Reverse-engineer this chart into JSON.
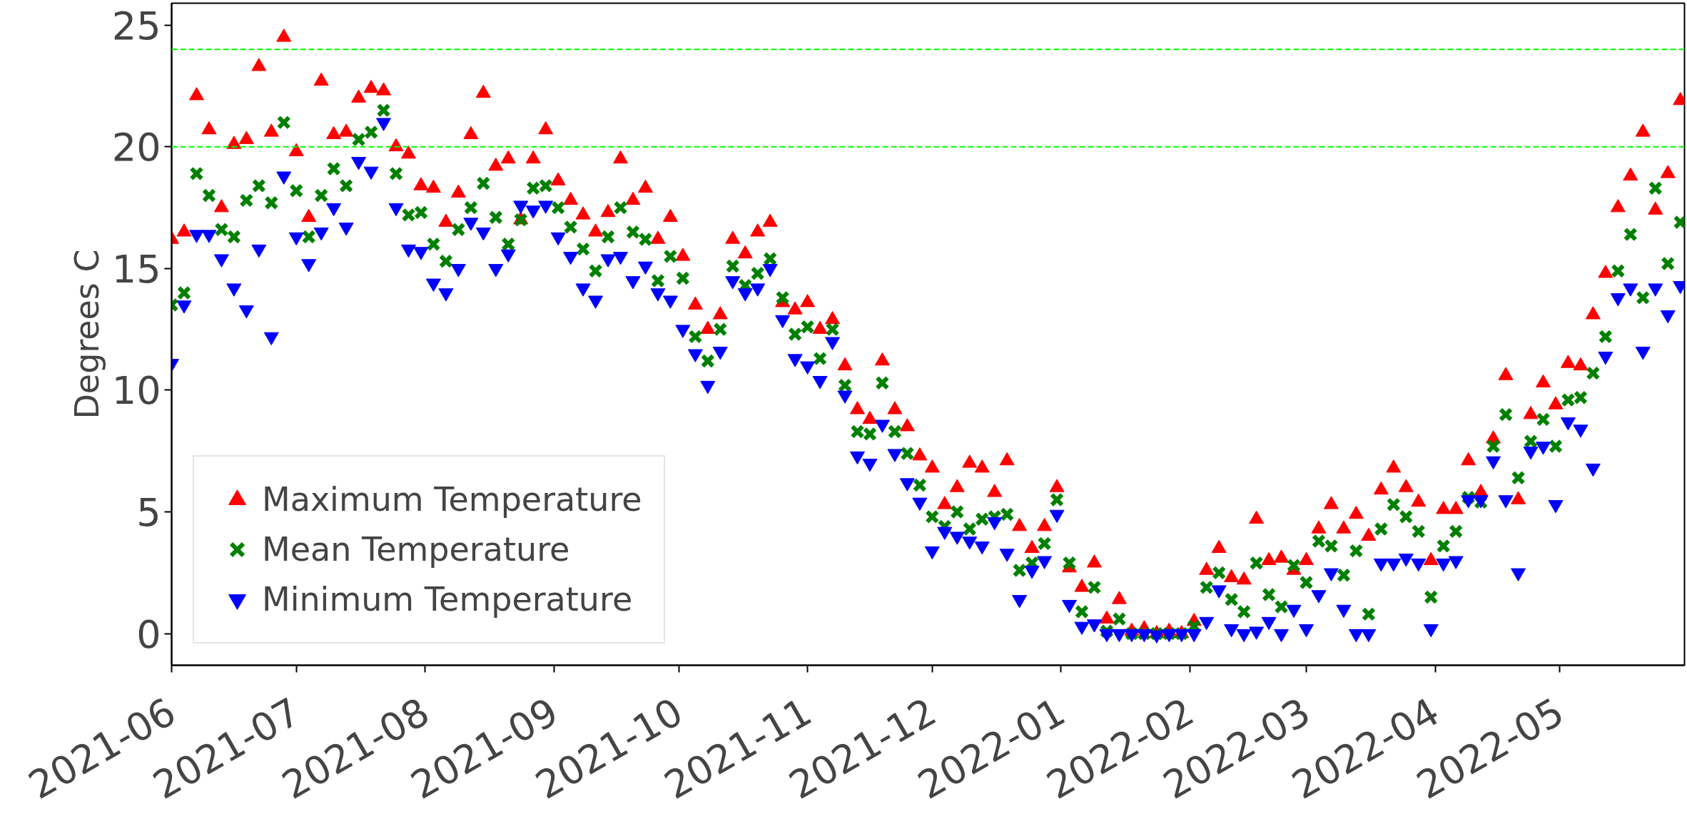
{
  "chart_data": {
    "type": "scatter",
    "ylabel": "Degrees C",
    "x": [
      "2021-06-01",
      "2021-06-04",
      "2021-06-07",
      "2021-06-10",
      "2021-06-13",
      "2021-06-16",
      "2021-06-19",
      "2021-06-22",
      "2021-06-25",
      "2021-06-28",
      "2021-07-01",
      "2021-07-04",
      "2021-07-07",
      "2021-07-10",
      "2021-07-13",
      "2021-07-16",
      "2021-07-19",
      "2021-07-22",
      "2021-07-25",
      "2021-07-28",
      "2021-07-31",
      "2021-08-03",
      "2021-08-06",
      "2021-08-09",
      "2021-08-12",
      "2021-08-15",
      "2021-08-18",
      "2021-08-21",
      "2021-08-24",
      "2021-08-27",
      "2021-08-30",
      "2021-09-02",
      "2021-09-05",
      "2021-09-08",
      "2021-09-11",
      "2021-09-14",
      "2021-09-17",
      "2021-09-20",
      "2021-09-23",
      "2021-09-26",
      "2021-09-29",
      "2021-10-02",
      "2021-10-05",
      "2021-10-08",
      "2021-10-11",
      "2021-10-14",
      "2021-10-17",
      "2021-10-20",
      "2021-10-23",
      "2021-10-26",
      "2021-10-29",
      "2021-11-01",
      "2021-11-04",
      "2021-11-07",
      "2021-11-10",
      "2021-11-13",
      "2021-11-16",
      "2021-11-19",
      "2021-11-22",
      "2021-11-25",
      "2021-11-28",
      "2021-12-01",
      "2021-12-04",
      "2021-12-07",
      "2021-12-10",
      "2021-12-13",
      "2021-12-16",
      "2021-12-19",
      "2021-12-22",
      "2021-12-25",
      "2021-12-28",
      "2021-12-31",
      "2022-01-03",
      "2022-01-06",
      "2022-01-09",
      "2022-01-12",
      "2022-01-15",
      "2022-01-18",
      "2022-01-21",
      "2022-01-24",
      "2022-01-27",
      "2022-01-30",
      "2022-02-02",
      "2022-02-05",
      "2022-02-08",
      "2022-02-11",
      "2022-02-14",
      "2022-02-17",
      "2022-02-20",
      "2022-02-23",
      "2022-02-26",
      "2022-03-01",
      "2022-03-04",
      "2022-03-07",
      "2022-03-10",
      "2022-03-13",
      "2022-03-16",
      "2022-03-19",
      "2022-03-22",
      "2022-03-25",
      "2022-03-28",
      "2022-03-31",
      "2022-04-03",
      "2022-04-06",
      "2022-04-09",
      "2022-04-12",
      "2022-04-15",
      "2022-04-18",
      "2022-04-21",
      "2022-04-24",
      "2022-04-27",
      "2022-04-30",
      "2022-05-03",
      "2022-05-06",
      "2022-05-09",
      "2022-05-12",
      "2022-05-15",
      "2022-05-18",
      "2022-05-21",
      "2022-05-24",
      "2022-05-27",
      "2022-05-30"
    ],
    "series": [
      {
        "name": "Maximum Temperature",
        "color": "#ff0000",
        "marker": "triangle",
        "values": [
          16.2,
          16.5,
          22.1,
          20.7,
          17.5,
          20.1,
          20.3,
          23.3,
          20.6,
          24.5,
          19.8,
          17.1,
          22.7,
          20.5,
          20.6,
          22.0,
          22.4,
          22.3,
          20.0,
          19.7,
          18.4,
          18.3,
          16.9,
          18.1,
          20.5,
          22.2,
          19.2,
          19.5,
          17.0,
          19.5,
          20.7,
          18.6,
          17.8,
          17.2,
          16.5,
          17.3,
          19.5,
          17.8,
          18.3,
          16.2,
          17.1,
          15.5,
          13.5,
          12.5,
          13.1,
          16.2,
          15.6,
          16.5,
          16.9,
          13.6,
          13.3,
          13.6,
          12.5,
          12.9,
          11.0,
          9.2,
          8.8,
          11.2,
          9.2,
          8.5,
          7.3,
          6.8,
          5.3,
          6.0,
          7.0,
          6.8,
          5.8,
          7.1,
          4.4,
          3.5,
          4.4,
          6.0,
          2.7,
          1.9,
          2.9,
          0.6,
          1.4,
          0.1,
          0.2,
          0.0,
          0.1,
          0.0,
          0.5,
          2.6,
          3.5,
          2.3,
          2.2,
          4.7,
          3.0,
          3.1,
          2.6,
          3.0,
          4.3,
          5.3,
          4.3,
          4.9,
          4.0,
          5.9,
          6.8,
          6.0,
          5.4,
          3.0,
          5.1,
          5.1,
          7.1,
          5.8,
          8.0,
          10.6,
          5.5,
          9.0,
          10.3,
          9.4,
          11.1,
          11.0,
          13.1,
          14.8,
          17.5,
          18.8,
          20.6,
          17.4,
          18.9,
          21.9
        ]
      },
      {
        "name": "Mean Temperature",
        "color": "#008000",
        "marker": "cross",
        "values": [
          13.5,
          14.0,
          18.9,
          18.0,
          16.6,
          16.3,
          17.8,
          18.4,
          17.7,
          21.0,
          18.2,
          16.3,
          18.0,
          19.1,
          18.4,
          20.3,
          20.6,
          21.5,
          18.9,
          17.2,
          17.3,
          16.0,
          15.3,
          16.6,
          17.5,
          18.5,
          17.1,
          16.0,
          17.0,
          18.3,
          18.4,
          17.5,
          16.7,
          15.8,
          14.9,
          16.3,
          17.5,
          16.5,
          16.2,
          14.5,
          15.5,
          14.6,
          12.2,
          11.2,
          12.5,
          15.1,
          14.3,
          14.8,
          15.4,
          13.8,
          12.3,
          12.6,
          11.3,
          12.5,
          10.2,
          8.3,
          8.2,
          10.3,
          8.3,
          7.4,
          6.1,
          4.8,
          4.4,
          5.0,
          4.3,
          4.7,
          4.8,
          4.9,
          2.6,
          2.9,
          3.7,
          5.5,
          2.9,
          0.9,
          1.9,
          0.1,
          0.6,
          0.0,
          0.0,
          0.0,
          0.0,
          0.0,
          0.3,
          1.9,
          2.5,
          1.4,
          0.9,
          2.9,
          1.6,
          1.1,
          2.8,
          2.1,
          3.8,
          3.6,
          2.4,
          3.4,
          0.8,
          4.3,
          5.3,
          4.8,
          4.2,
          1.5,
          3.6,
          4.2,
          5.6,
          5.4,
          7.7,
          9.0,
          6.4,
          7.9,
          8.8,
          7.7,
          9.6,
          9.7,
          10.7,
          12.2,
          14.9,
          16.4,
          13.8,
          18.3,
          15.2,
          16.9
        ]
      },
      {
        "name": "Minimum Temperature",
        "color": "#0000ff",
        "marker": "triangle_down",
        "values": [
          11.1,
          13.5,
          16.4,
          16.4,
          15.4,
          14.2,
          13.3,
          15.8,
          12.2,
          18.8,
          16.3,
          15.2,
          16.5,
          17.5,
          16.7,
          19.4,
          19.0,
          21.0,
          17.5,
          15.8,
          15.7,
          14.4,
          14.0,
          15.0,
          16.9,
          16.5,
          15.0,
          15.6,
          17.6,
          17.4,
          17.6,
          16.3,
          15.5,
          14.2,
          13.7,
          15.4,
          15.5,
          14.5,
          15.1,
          14.0,
          13.7,
          12.5,
          11.5,
          10.2,
          11.6,
          14.5,
          14.0,
          14.2,
          15.0,
          12.9,
          11.3,
          11.0,
          10.4,
          12.0,
          9.8,
          7.3,
          7.0,
          8.6,
          7.4,
          6.2,
          5.4,
          3.4,
          4.2,
          4.0,
          3.8,
          3.6,
          4.6,
          3.3,
          1.4,
          2.6,
          3.0,
          4.9,
          1.2,
          0.3,
          0.4,
          0.0,
          0.0,
          0.0,
          0.0,
          -0.05,
          0.0,
          0.0,
          0.0,
          0.5,
          1.8,
          0.2,
          0.0,
          0.1,
          0.5,
          0.0,
          1.0,
          0.2,
          1.6,
          2.5,
          1.0,
          0.0,
          0.0,
          2.9,
          2.9,
          3.1,
          2.9,
          0.2,
          2.9,
          3.0,
          5.5,
          5.5,
          7.1,
          5.5,
          2.5,
          7.5,
          7.7,
          5.3,
          8.7,
          8.4,
          6.8,
          11.4,
          13.8,
          14.2,
          11.6,
          14.2,
          13.1,
          14.3
        ]
      }
    ],
    "xlim": [
      "2021-06-01",
      "2022-05-31"
    ],
    "xticks": [
      "2021-06",
      "2021-07",
      "2021-08",
      "2021-09",
      "2021-10",
      "2021-11",
      "2021-12",
      "2022-01",
      "2022-02",
      "2022-03",
      "2022-04",
      "2022-05"
    ],
    "ylim": [
      -1.3,
      25.9
    ],
    "yticks": [
      0,
      5,
      10,
      15,
      20,
      25
    ],
    "ref_lines": [
      {
        "axis": "y",
        "value": 24,
        "label": null,
        "color": "#00ff00",
        "line_style": "dashed"
      },
      {
        "axis": "y",
        "value": 20,
        "label": null,
        "color": "#00ff00",
        "line_style": "dashed"
      }
    ],
    "grid": false,
    "legend": "bottom left"
  }
}
